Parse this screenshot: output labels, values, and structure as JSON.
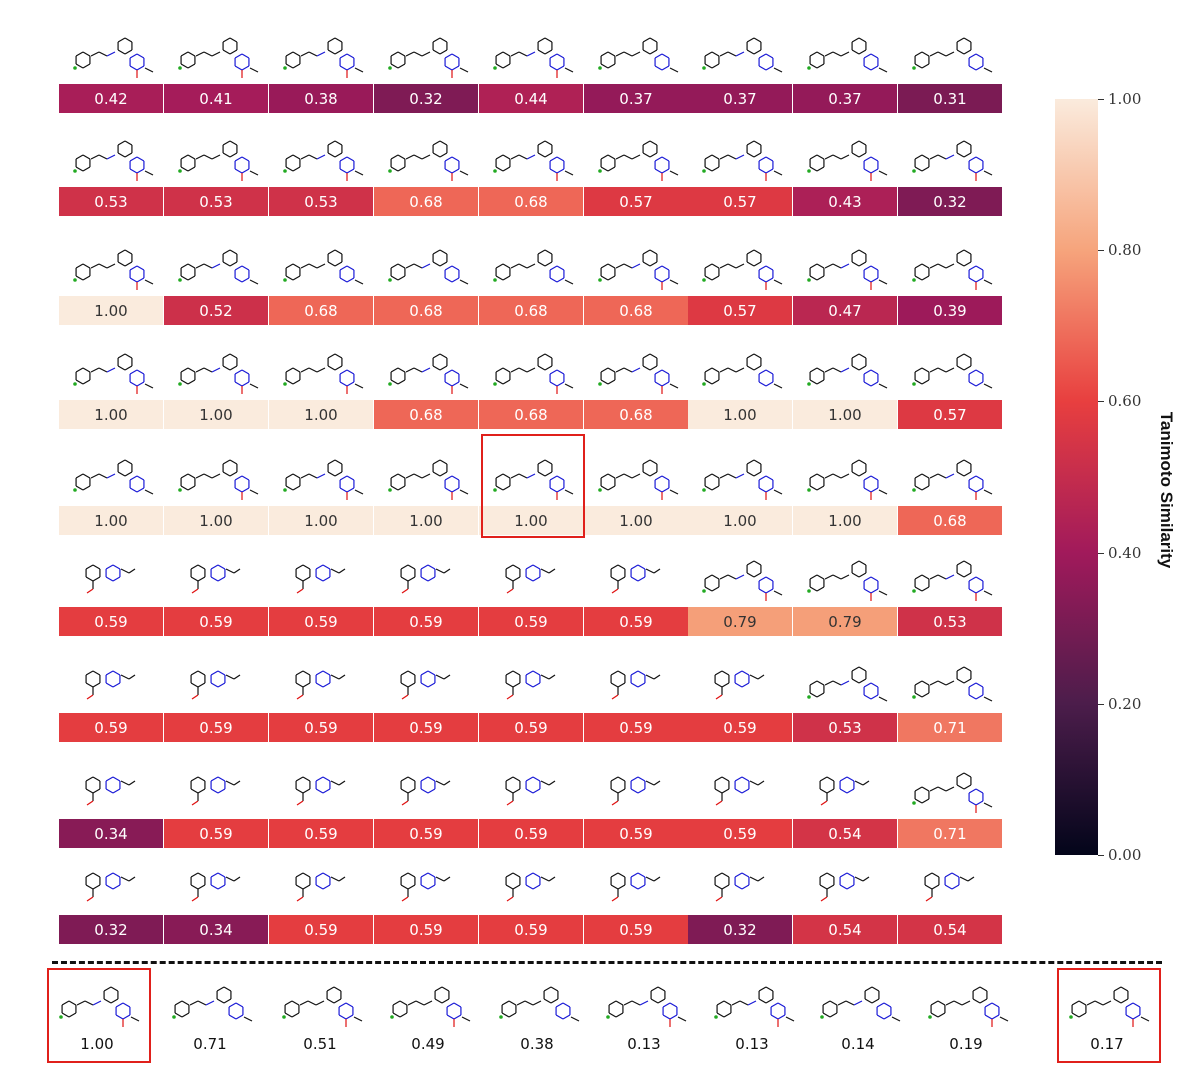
{
  "chart_data": {
    "type": "heatmap",
    "rows": [
      [
        0.42,
        0.41,
        0.38,
        0.32,
        0.44,
        0.37,
        0.37,
        0.37,
        0.31
      ],
      [
        0.53,
        0.53,
        0.53,
        0.68,
        0.68,
        0.57,
        0.57,
        0.43,
        0.32
      ],
      [
        1.0,
        0.52,
        0.68,
        0.68,
        0.68,
        0.68,
        0.57,
        0.47,
        0.39
      ],
      [
        1.0,
        1.0,
        1.0,
        0.68,
        0.68,
        0.68,
        1.0,
        1.0,
        0.57
      ],
      [
        1.0,
        1.0,
        1.0,
        1.0,
        1.0,
        1.0,
        1.0,
        1.0,
        0.68
      ],
      [
        0.59,
        0.59,
        0.59,
        0.59,
        0.59,
        0.59,
        0.79,
        0.79,
        0.53
      ],
      [
        0.59,
        0.59,
        0.59,
        0.59,
        0.59,
        0.59,
        0.59,
        0.53,
        0.71
      ],
      [
        0.34,
        0.59,
        0.59,
        0.59,
        0.59,
        0.59,
        0.59,
        0.54,
        0.71
      ],
      [
        0.32,
        0.34,
        0.59,
        0.59,
        0.59,
        0.59,
        0.32,
        0.54,
        0.54
      ]
    ],
    "labels": [
      [
        "0.42",
        "0.41",
        "0.38",
        "0.32",
        "0.44",
        "0.37",
        "0.37",
        "0.37",
        "0.31"
      ],
      [
        "0.53",
        "0.53",
        "0.53",
        "0.68",
        "0.68",
        "0.57",
        "0.57",
        "0.43",
        "0.32"
      ],
      [
        "1.00",
        "0.52",
        "0.68",
        "0.68",
        "0.68",
        "0.68",
        "0.57",
        "0.47",
        "0.39"
      ],
      [
        "1.00",
        "1.00",
        "1.00",
        "0.68",
        "0.68",
        "0.68",
        "1.00",
        "1.00",
        "0.57"
      ],
      [
        "1.00",
        "1.00",
        "1.00",
        "1.00",
        "1.00",
        "1.00",
        "1.00",
        "1.00",
        "0.68"
      ],
      [
        "0.59",
        "0.59",
        "0.59",
        "0.59",
        "0.59",
        "0.59",
        "0.79",
        "0.79",
        "0.53"
      ],
      [
        "0.59",
        "0.59",
        "0.59",
        "0.59",
        "0.59",
        "0.59",
        "0.59",
        "0.53",
        "0.71"
      ],
      [
        "0.34",
        "0.59",
        "0.59",
        "0.59",
        "0.59",
        "0.59",
        "0.59",
        "0.54",
        "0.71"
      ],
      [
        "0.32",
        "0.34",
        "0.59",
        "0.59",
        "0.59",
        "0.59",
        "0.32",
        "0.54",
        "0.54"
      ]
    ],
    "highlighted_cell": [
      4,
      4
    ],
    "colorbar": {
      "label": "Tanimoto Similarity",
      "range": [
        0,
        1
      ],
      "ticks": [
        "0.00",
        "0.20",
        "0.40",
        "0.60",
        "0.80",
        "1.00"
      ],
      "colors": [
        "#03051a",
        "#4c1d4b",
        "#a11a5b",
        "#e83f3f",
        "#f6a47c",
        "#faebdd"
      ]
    },
    "bottom_row": {
      "values": [
        1.0,
        0.71,
        0.51,
        0.49,
        0.38,
        0.13,
        0.13,
        0.14,
        0.19,
        0.17
      ],
      "labels": [
        "1.00",
        "0.71",
        "0.51",
        "0.49",
        "0.38",
        "0.13",
        "0.13",
        "0.14",
        "0.19",
        "0.17"
      ],
      "highlighted": [
        0,
        9
      ]
    }
  }
}
